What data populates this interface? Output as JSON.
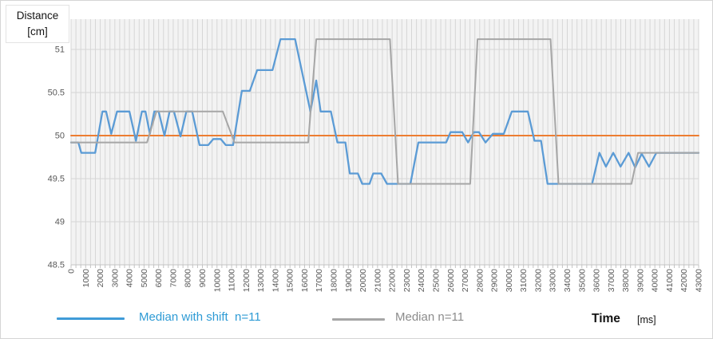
{
  "axis_title": {
    "line1": "Distance",
    "line2": "[cm]"
  },
  "x_axis_title": {
    "main": "Time",
    "unit": "[ms]"
  },
  "legend": {
    "shift": {
      "label": "Median with shift  n=11",
      "color": "#2e9bd5"
    },
    "median": {
      "label": "Median n=11",
      "color": "#8c8c8c"
    }
  },
  "colors": {
    "blue_line": "#5b9bd5",
    "gray_line": "#a6a6a6",
    "orange_line": "#ed7d31",
    "gridline": "#d6d6d6",
    "axis_line": "#c3c3c3",
    "tick_text": "#595959",
    "plot_background": "#f3f3f3"
  },
  "chart_data": {
    "type": "line",
    "title": "",
    "xlabel": "Time [ms]",
    "ylabel": "Distance [cm]",
    "xlim": [
      0,
      43000
    ],
    "ylim": [
      48.5,
      51.35
    ],
    "x_tick_step": 1000,
    "x_minor_per_major": 3,
    "grid": true,
    "legend_position": "bottom",
    "y_ticks": [
      48.5,
      49,
      49.5,
      50,
      50.5,
      51
    ],
    "y_tick_labels": [
      "48.5",
      "49",
      "49.5",
      "50",
      "50.5",
      "51"
    ],
    "x_tick_labels": [
      "0",
      "1000",
      "2000",
      "3000",
      "4000",
      "5000",
      "6000",
      "7000",
      "8000",
      "9000",
      "10000",
      "11000",
      "12000",
      "13000",
      "14000",
      "15000",
      "16000",
      "17000",
      "18000",
      "19000",
      "20000",
      "21000",
      "22000",
      "23000",
      "24000",
      "25000",
      "26000",
      "27000",
      "28000",
      "29000",
      "30000",
      "31000",
      "32000",
      "33000",
      "34000",
      "35000",
      "36000",
      "37000",
      "38000",
      "39000",
      "40000",
      "41000",
      "42000",
      "43000"
    ],
    "series": [
      {
        "name": "Reference 50 cm",
        "color": "#ed7d31",
        "width": 2,
        "in_legend": false,
        "points": [
          [
            0,
            50
          ],
          [
            43000,
            50
          ]
        ]
      },
      {
        "name": "Median with shift n=11",
        "color": "#5b9bd5",
        "width": 2.3,
        "in_legend": true,
        "points": [
          [
            0,
            49.92
          ],
          [
            500,
            49.92
          ],
          [
            700,
            49.8
          ],
          [
            1650,
            49.8
          ],
          [
            2150,
            50.28
          ],
          [
            2400,
            50.28
          ],
          [
            2750,
            50.02
          ],
          [
            3150,
            50.28
          ],
          [
            4000,
            50.28
          ],
          [
            4450,
            49.94
          ],
          [
            4850,
            50.28
          ],
          [
            5100,
            50.28
          ],
          [
            5400,
            50.02
          ],
          [
            5700,
            50.28
          ],
          [
            6000,
            50.28
          ],
          [
            6400,
            50.0
          ],
          [
            6750,
            50.28
          ],
          [
            7050,
            50.28
          ],
          [
            7500,
            49.99
          ],
          [
            7900,
            50.28
          ],
          [
            8300,
            50.28
          ],
          [
            8800,
            49.89
          ],
          [
            9400,
            49.89
          ],
          [
            9750,
            49.96
          ],
          [
            10250,
            49.96
          ],
          [
            10600,
            49.89
          ],
          [
            11100,
            49.89
          ],
          [
            11700,
            50.52
          ],
          [
            12250,
            50.52
          ],
          [
            12750,
            50.76
          ],
          [
            13800,
            50.76
          ],
          [
            14350,
            51.12
          ],
          [
            15350,
            51.12
          ],
          [
            16400,
            50.28
          ],
          [
            16800,
            50.64
          ],
          [
            17100,
            50.28
          ],
          [
            17800,
            50.28
          ],
          [
            18250,
            49.92
          ],
          [
            18800,
            49.92
          ],
          [
            19100,
            49.56
          ],
          [
            19650,
            49.56
          ],
          [
            19950,
            49.44
          ],
          [
            20450,
            49.44
          ],
          [
            20700,
            49.56
          ],
          [
            21250,
            49.56
          ],
          [
            21650,
            49.44
          ],
          [
            23250,
            49.44
          ],
          [
            23800,
            49.92
          ],
          [
            25700,
            49.92
          ],
          [
            26000,
            50.04
          ],
          [
            26800,
            50.04
          ],
          [
            27200,
            49.92
          ],
          [
            27600,
            50.04
          ],
          [
            27950,
            50.04
          ],
          [
            28400,
            49.92
          ],
          [
            28900,
            50.02
          ],
          [
            29650,
            50.02
          ],
          [
            30200,
            50.28
          ],
          [
            31300,
            50.28
          ],
          [
            31750,
            49.94
          ],
          [
            32200,
            49.94
          ],
          [
            32650,
            49.44
          ],
          [
            35700,
            49.44
          ],
          [
            36200,
            49.8
          ],
          [
            36650,
            49.64
          ],
          [
            37150,
            49.8
          ],
          [
            37650,
            49.64
          ],
          [
            38200,
            49.8
          ],
          [
            38650,
            49.63
          ],
          [
            39100,
            49.79
          ],
          [
            39600,
            49.64
          ],
          [
            40100,
            49.8
          ],
          [
            43000,
            49.8
          ]
        ]
      },
      {
        "name": "Median n=11",
        "color": "#a6a6a6",
        "width": 2,
        "in_legend": true,
        "points": [
          [
            0,
            49.92
          ],
          [
            5200,
            49.92
          ],
          [
            5850,
            50.28
          ],
          [
            10400,
            50.28
          ],
          [
            11200,
            49.92
          ],
          [
            16250,
            49.92
          ],
          [
            16800,
            51.12
          ],
          [
            21850,
            51.12
          ],
          [
            22400,
            49.44
          ],
          [
            27350,
            49.44
          ],
          [
            27850,
            51.12
          ],
          [
            32850,
            51.12
          ],
          [
            33400,
            49.44
          ],
          [
            38400,
            49.44
          ],
          [
            38850,
            49.8
          ],
          [
            43000,
            49.8
          ]
        ]
      }
    ]
  }
}
